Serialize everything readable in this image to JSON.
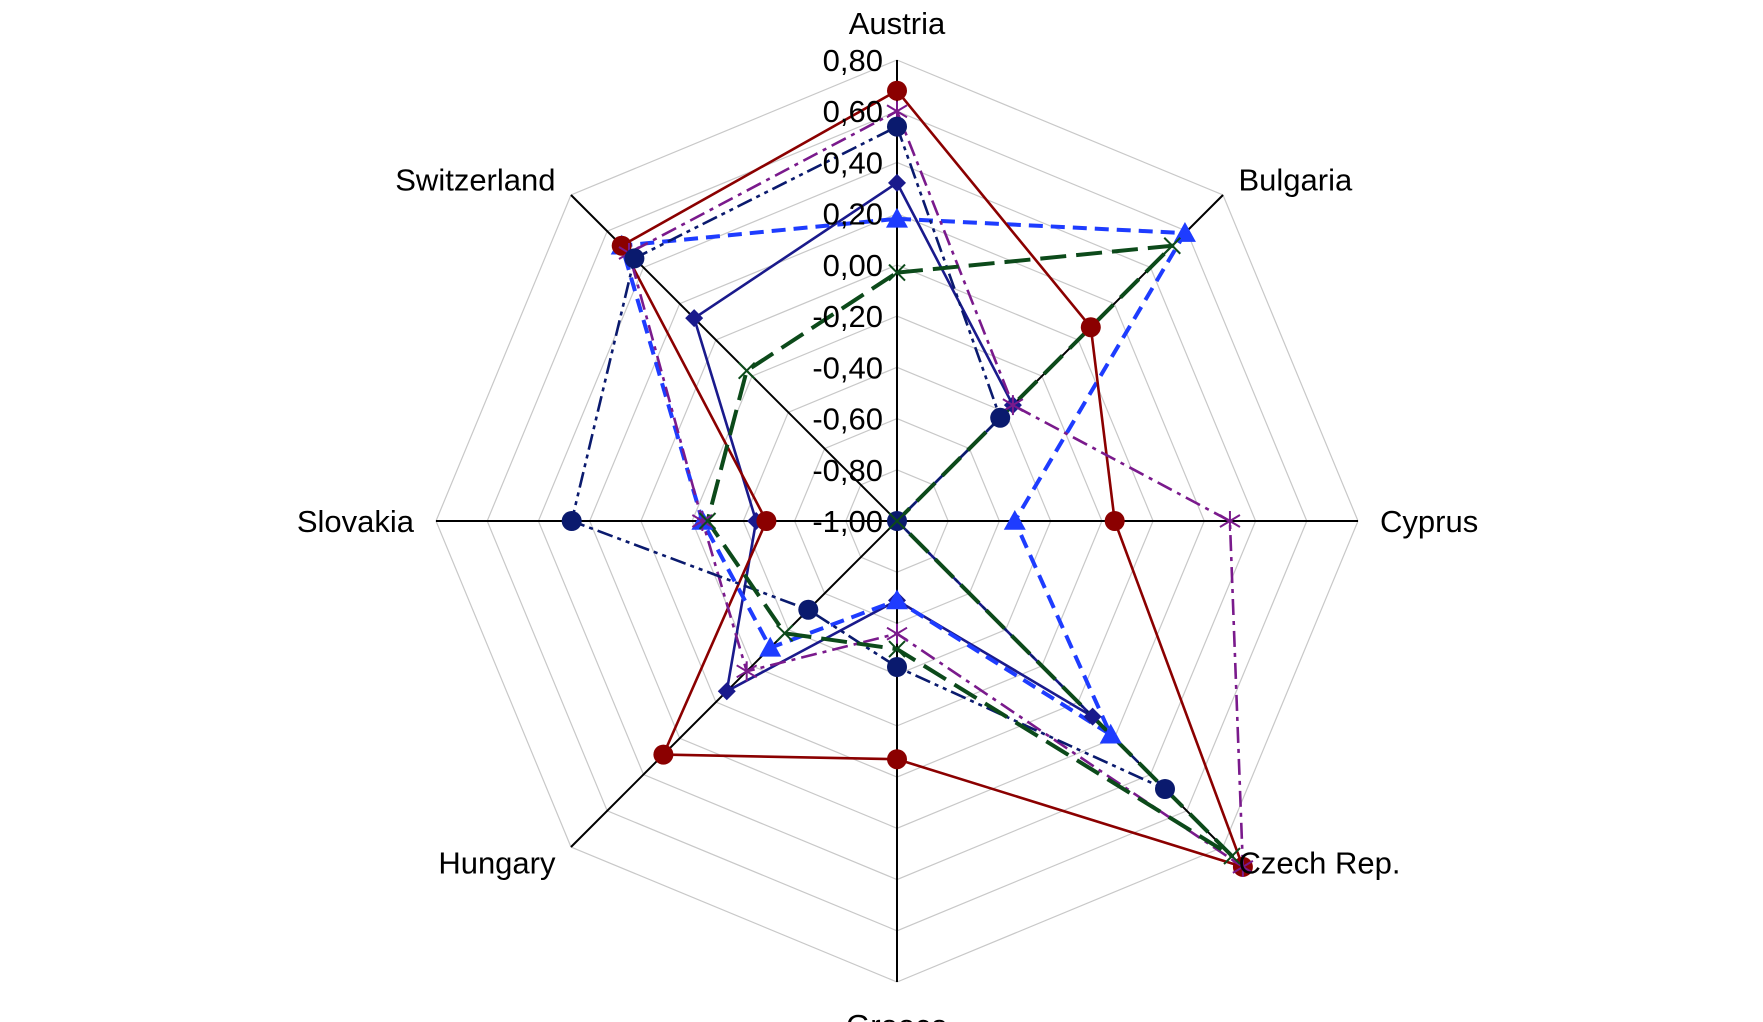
{
  "chart_data": {
    "type": "radar",
    "categories": [
      "Austria",
      "Bulgaria",
      "Cyprus",
      "Czech Rep.",
      "Greece",
      "Hungary",
      "Slovakia",
      "Switzerland"
    ],
    "tick_labels": [
      "0,80",
      "0,60",
      "0,40",
      "0,20",
      "0,00",
      "-0,20",
      "-0,40",
      "-0,60",
      "-0,80",
      "-1,00"
    ],
    "rlim": [
      -1.0,
      0.8
    ],
    "grid": true,
    "legend": "none",
    "series": [
      {
        "values": [
          0.32,
          -0.36,
          -1.0,
          0.08,
          -0.69,
          -0.06,
          -0.45,
          0.12
        ],
        "color": "#1a1a8c",
        "marker": "diamond",
        "dash": "solid"
      },
      {
        "values": [
          0.18,
          0.59,
          -0.54,
          0.18,
          -0.69,
          -0.3,
          -0.24,
          0.52
        ],
        "color": "#1e3cff",
        "marker": "triangle",
        "dash": "dashed"
      },
      {
        "values": [
          0.68,
          0.07,
          -0.15,
          0.91,
          -0.07,
          0.29,
          -0.49,
          0.52
        ],
        "color": "#8b0000",
        "marker": "circle",
        "dash": "solid"
      },
      {
        "values": [
          0.6,
          -0.36,
          0.3,
          0.91,
          -0.56,
          -0.17,
          -0.24,
          0.48
        ],
        "color": "#7a1a8c",
        "marker": "star",
        "dash": "dashdot"
      },
      {
        "values": [
          0.54,
          -0.43,
          -1.0,
          0.48,
          -0.43,
          -0.51,
          0.27,
          0.45
        ],
        "color": "#0a1a6e",
        "marker": "circle",
        "dash": "dashdotdot"
      },
      {
        "values": [
          -0.03,
          0.52,
          -1.0,
          0.85,
          -0.5,
          -0.38,
          -0.26,
          -0.17
        ],
        "color": "#0c4a1a",
        "marker": "x",
        "dash": "longdash"
      }
    ]
  }
}
